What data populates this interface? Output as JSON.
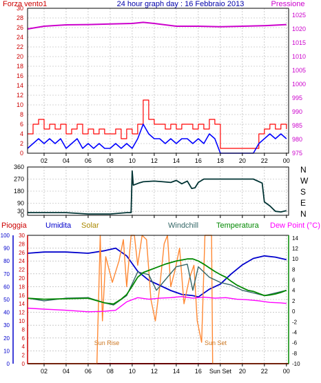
{
  "header": {
    "title": "24 hour graph day : 16 Febbraio 2013",
    "left_label": "Forza vento1",
    "right_label": "Pressione"
  },
  "colors": {
    "wind_gust": "#ff0000",
    "wind_avg": "#0000ff",
    "pressure": "#cc00cc",
    "direction": "#003333",
    "rain": "#cc0000",
    "humidity": "#0000cc",
    "solar": "#ff8833",
    "windchill": "#336666",
    "temperature": "#008800",
    "dewpoint": "#ff00ff",
    "grid": "#aaaaaa",
    "frame": "#000000"
  },
  "x_ticks": [
    "02",
    "04",
    "06",
    "08",
    "10",
    "12",
    "14",
    "16",
    "18",
    "20",
    "22",
    "00"
  ],
  "bottom_x_ticks": [
    "02",
    "04",
    "06",
    "08",
    "10",
    "12",
    "14",
    "16",
    "Sun Set",
    "20",
    "22",
    "00"
  ],
  "chart_data": [
    {
      "type": "line",
      "name": "wind-pressure",
      "ylabel": "Forza vento1",
      "y2label": "Pressione",
      "ylim": [
        0,
        30
      ],
      "y2lim": [
        975,
        1027.5
      ],
      "y_ticks": [
        0,
        2,
        4,
        6,
        8,
        10,
        12,
        14,
        16,
        18,
        20,
        22,
        24,
        26,
        28,
        30
      ],
      "y2_ticks": [
        975,
        980,
        985,
        990,
        995,
        1000,
        1005,
        1010,
        1015,
        1020,
        1025
      ],
      "xlim": [
        0.5,
        24.2
      ],
      "grid": true,
      "series": [
        {
          "key": "wind_gust",
          "x": [
            0.5,
            1,
            1.5,
            2,
            2.5,
            3,
            3.5,
            4,
            4.5,
            5,
            5.5,
            6,
            6.5,
            7,
            7.5,
            8,
            8.5,
            9,
            9.5,
            10,
            10.5,
            11,
            11.5,
            12,
            12.5,
            13,
            13.5,
            14,
            14.5,
            15,
            15.5,
            16,
            16.5,
            17,
            17.5,
            18,
            18.5,
            19,
            19.5,
            20,
            20.5,
            21,
            21.5,
            22,
            22.5,
            23,
            23.5,
            24
          ],
          "values": [
            4,
            6,
            7,
            5,
            6,
            5,
            6,
            4,
            5,
            6,
            4,
            5,
            4,
            5,
            4,
            4,
            5,
            3,
            5,
            4,
            6,
            11,
            7,
            6,
            6,
            5,
            6,
            5,
            6,
            6,
            5,
            6,
            5,
            7,
            6,
            1,
            1,
            1,
            1,
            1,
            1,
            1,
            4,
            5,
            6,
            5,
            6,
            5
          ]
        },
        {
          "key": "wind_avg",
          "x": [
            0.5,
            1,
            1.5,
            2,
            2.5,
            3,
            3.5,
            4,
            4.5,
            5,
            5.5,
            6,
            6.5,
            7,
            7.5,
            8,
            8.5,
            9,
            9.5,
            10,
            10.5,
            11,
            11.5,
            12,
            12.5,
            13,
            13.5,
            14,
            14.5,
            15,
            15.5,
            16,
            16.5,
            17,
            17.5,
            18,
            18.5,
            19,
            19.5,
            20,
            20.5,
            21,
            21.5,
            22,
            22.5,
            23,
            23.5,
            24
          ],
          "values": [
            1,
            2,
            3,
            2,
            3,
            2,
            3,
            1,
            2,
            3,
            1,
            2,
            1,
            2,
            1,
            1,
            2,
            1,
            2,
            1,
            3,
            6,
            4,
            3,
            3,
            2,
            3,
            2,
            3,
            3,
            2,
            3,
            2,
            4,
            3,
            0,
            0,
            0,
            0,
            0,
            0,
            0,
            2,
            3,
            4,
            3,
            4,
            3
          ]
        },
        {
          "key": "pressure",
          "axis": "right",
          "x": [
            0.5,
            2,
            4,
            6,
            8,
            10,
            11,
            12,
            14,
            16,
            18,
            20,
            22,
            24
          ],
          "values": [
            1020,
            1021,
            1021.5,
            1021.6,
            1021.8,
            1022,
            1022.4,
            1022,
            1021,
            1021,
            1020.8,
            1021,
            1021.2,
            1021.6
          ]
        }
      ]
    },
    {
      "type": "line",
      "name": "wind-direction",
      "ylim": [
        0,
        360
      ],
      "y_ticks": [
        0,
        30,
        90,
        180,
        270,
        360
      ],
      "direction_labels": [
        "N",
        "W",
        "S",
        "E",
        "N"
      ],
      "xlim": [
        0.5,
        24.2
      ],
      "grid": true,
      "series": [
        {
          "key": "direction",
          "x": [
            0.5,
            4,
            6,
            8,
            9.5,
            9.9,
            10,
            10.1,
            10.6,
            11,
            12,
            12.8,
            13.5,
            14,
            14.5,
            15,
            15.4,
            15.7,
            16,
            16.5,
            17.5,
            19,
            20,
            21,
            21.8,
            22,
            22.5,
            23,
            23.5,
            24
          ],
          "values": [
            20,
            20,
            10,
            10,
            20,
            20,
            330,
            225,
            240,
            250,
            255,
            250,
            245,
            260,
            235,
            255,
            200,
            205,
            245,
            270,
            270,
            270,
            270,
            270,
            240,
            100,
            70,
            30,
            25,
            35
          ]
        }
      ]
    },
    {
      "type": "line",
      "name": "weather",
      "legend": [
        "Pioggia",
        "Umidita",
        "Solar",
        "Windchill",
        "Temperatura",
        "Dew Point (°C)"
      ],
      "ylim": [
        0,
        100
      ],
      "y_ticks": [
        0,
        10,
        20,
        30,
        40,
        50,
        60,
        70,
        80,
        90,
        100
      ],
      "y_inner_ticks": [
        0,
        2,
        4,
        6,
        8,
        10,
        12,
        14,
        16,
        18,
        20,
        22,
        24,
        26,
        28,
        30
      ],
      "y_right_lim": [
        -10,
        14.5
      ],
      "y_right_ticks": [
        14,
        12,
        10,
        8,
        6,
        4,
        2,
        0,
        -2,
        -4,
        -6,
        -8,
        -10
      ],
      "xlim": [
        0.5,
        24.2
      ],
      "grid": true,
      "annotations": [
        "Sun Rise",
        "Sun Set"
      ],
      "series": [
        {
          "key": "rain",
          "axis": "inner",
          "x": [
            0.5,
            24.2
          ],
          "values": [
            0,
            0
          ]
        },
        {
          "key": "humidity",
          "x": [
            0.5,
            2,
            4,
            6,
            7.5,
            8.5,
            9.5,
            10.5,
            11.5,
            12.5,
            13.5,
            14.5,
            15.5,
            16,
            17,
            18,
            19,
            20,
            21,
            22,
            23,
            24
          ],
          "values": [
            86,
            87,
            87,
            86,
            88,
            90,
            84,
            72,
            65,
            61,
            57,
            54,
            53,
            52,
            58,
            62,
            70,
            77,
            82,
            84,
            83,
            81
          ]
        },
        {
          "key": "solar",
          "axis": "inner",
          "x": [
            0.5,
            6.8,
            7.1,
            7.3,
            7.6,
            8.2,
            8.8,
            9.2,
            9.5,
            9.9,
            10.2,
            10.5,
            10.9,
            11.3,
            11.7,
            12.1,
            12.5,
            12.9,
            13.2,
            13.5,
            13.9,
            14.3,
            14.7,
            15.2,
            15.6,
            15.9,
            16.3,
            16.6,
            16.9,
            17.2,
            17.3,
            24.2
          ],
          "values": [
            0,
            0,
            30,
            10,
            25,
            19,
            24,
            29,
            18,
            30,
            30,
            23,
            30,
            29,
            15,
            10,
            18,
            28,
            30,
            18,
            22,
            27,
            14,
            20,
            23,
            10,
            5,
            30,
            30,
            30,
            0,
            0
          ]
        },
        {
          "key": "windchill",
          "axis": "right",
          "x": [
            0.5,
            2,
            4,
            6,
            7.5,
            8.3,
            9.5,
            10.5,
            11.5,
            12.2,
            13,
            14,
            15,
            15.5,
            16,
            17,
            18,
            19,
            20,
            21,
            22,
            23,
            24
          ],
          "values": [
            2.5,
            2,
            2.5,
            2.6,
            1.6,
            1.2,
            3.0,
            7.5,
            7.0,
            4.0,
            6.0,
            8.5,
            9.0,
            4.0,
            8.5,
            6.5,
            5.5,
            5.0,
            4.0,
            3.5,
            3.0,
            3.5,
            4.0
          ]
        },
        {
          "key": "temperature",
          "axis": "right",
          "x": [
            0.5,
            2,
            4,
            6,
            7.5,
            8.3,
            9,
            9.5,
            10,
            10.5,
            11,
            11.5,
            12,
            12.5,
            13,
            13.5,
            14,
            14.5,
            15,
            15.5,
            16,
            16.5,
            17,
            17.5,
            18,
            18.5,
            19,
            19.5,
            20,
            20.5,
            21,
            21.5,
            22,
            22.5,
            23,
            23.5,
            24
          ],
          "values": [
            2.5,
            2.3,
            2.4,
            2.5,
            1.6,
            1.4,
            2.3,
            3.2,
            4.8,
            6.5,
            7.4,
            7.8,
            8.2,
            8.6,
            9.0,
            9.3,
            9.6,
            9.8,
            10.0,
            10.0,
            9.6,
            9.0,
            8.3,
            7.6,
            7.0,
            6.5,
            5.7,
            5.0,
            4.5,
            4.0,
            3.8,
            3.4,
            3.0,
            3.1,
            3.3,
            3.6,
            4.0
          ]
        },
        {
          "key": "dewpoint",
          "axis": "right",
          "x": [
            0.5,
            2,
            4,
            6,
            7.5,
            8.5,
            9.5,
            10.5,
            11.5,
            12.5,
            13.5,
            14.5,
            15.5,
            16.5,
            17.5,
            18.5,
            19.5,
            20.5,
            21.5,
            22.5,
            23.5,
            24
          ],
          "values": [
            0.6,
            0.4,
            0.2,
            -0.1,
            0,
            0.2,
            1.8,
            2.6,
            2.3,
            2.5,
            2.6,
            2.8,
            2.5,
            2.7,
            2.5,
            2.6,
            2.3,
            2.2,
            2.0,
            1.7,
            1.6,
            1.5
          ]
        }
      ]
    }
  ]
}
